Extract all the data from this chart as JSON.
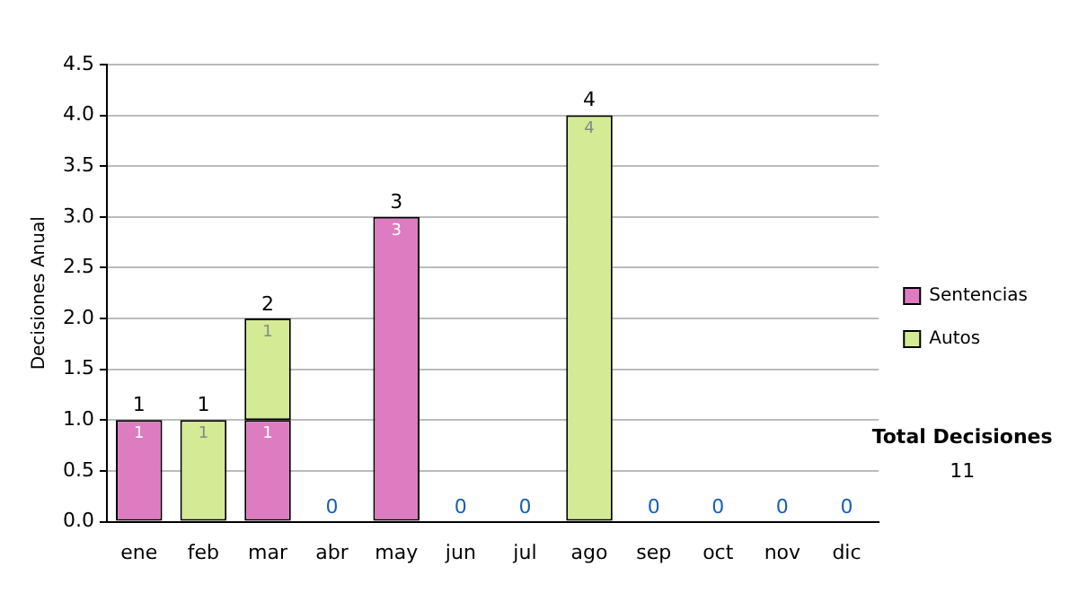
{
  "chart_data": {
    "type": "bar",
    "stacked": true,
    "ylabel": "Decisiones Anual",
    "categories": [
      "ene",
      "feb",
      "mar",
      "abr",
      "may",
      "jun",
      "jul",
      "ago",
      "sep",
      "oct",
      "nov",
      "dic"
    ],
    "series": [
      {
        "name": "Sentencias",
        "color": "#dd7cc0",
        "values": [
          1,
          0,
          1,
          0,
          3,
          0,
          0,
          0,
          0,
          0,
          0,
          0
        ],
        "value_labels": [
          "1",
          null,
          "1",
          null,
          "3",
          null,
          null,
          null,
          null,
          null,
          null,
          null
        ]
      },
      {
        "name": "Autos",
        "color": "#d4ea94",
        "values": [
          0,
          1,
          1,
          0,
          0,
          0,
          0,
          4,
          0,
          0,
          0,
          0
        ],
        "value_labels": [
          null,
          "1",
          "1",
          null,
          null,
          null,
          null,
          "4",
          null,
          null,
          null,
          null
        ]
      }
    ],
    "totals": [
      "1",
      "1",
      "2",
      "0",
      "3",
      "0",
      "0",
      "4",
      "0",
      "0",
      "0",
      "0"
    ],
    "ylim": [
      0,
      4.5
    ],
    "yticks": [
      {
        "value": 0,
        "label": "0.0"
      },
      0.5,
      {
        "value": 1,
        "label": "1.0"
      },
      1.5,
      {
        "value": 2,
        "label": "2.0"
      },
      2.5,
      {
        "value": 3,
        "label": "3.0"
      },
      3.5,
      {
        "value": 4,
        "label": "4.0"
      },
      4.5
    ],
    "grid": "y",
    "legend": "right",
    "annotations": [
      "Total Decisiones",
      "11"
    ]
  }
}
